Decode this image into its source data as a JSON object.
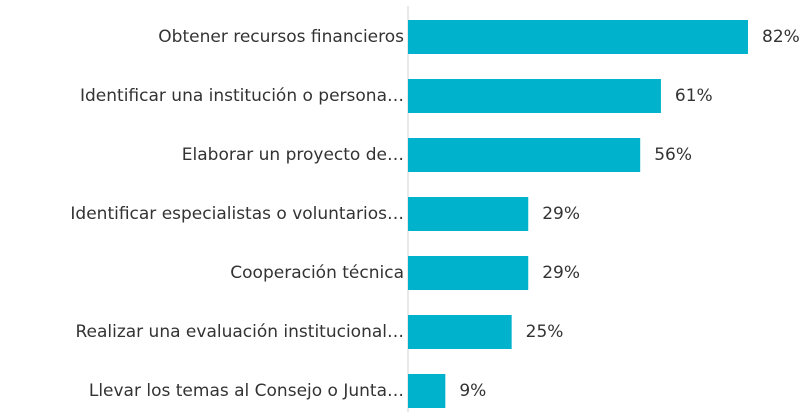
{
  "chart_data": {
    "type": "bar",
    "orientation": "horizontal",
    "categories": [
      "Obtener recursos financieros",
      "Identificar una institución o persona…",
      "Elaborar un proyecto de…",
      "Identificar especialistas o voluntarios…",
      "Cooperación técnica",
      "Realizar una evaluación institucional…",
      "Llevar los temas al Consejo o Junta…"
    ],
    "values": [
      82,
      61,
      56,
      29,
      29,
      25,
      9
    ],
    "value_labels": [
      "82%",
      "61%",
      "56%",
      "29%",
      "29%",
      "25%",
      "9%"
    ],
    "color": "#00b2cb"
  }
}
